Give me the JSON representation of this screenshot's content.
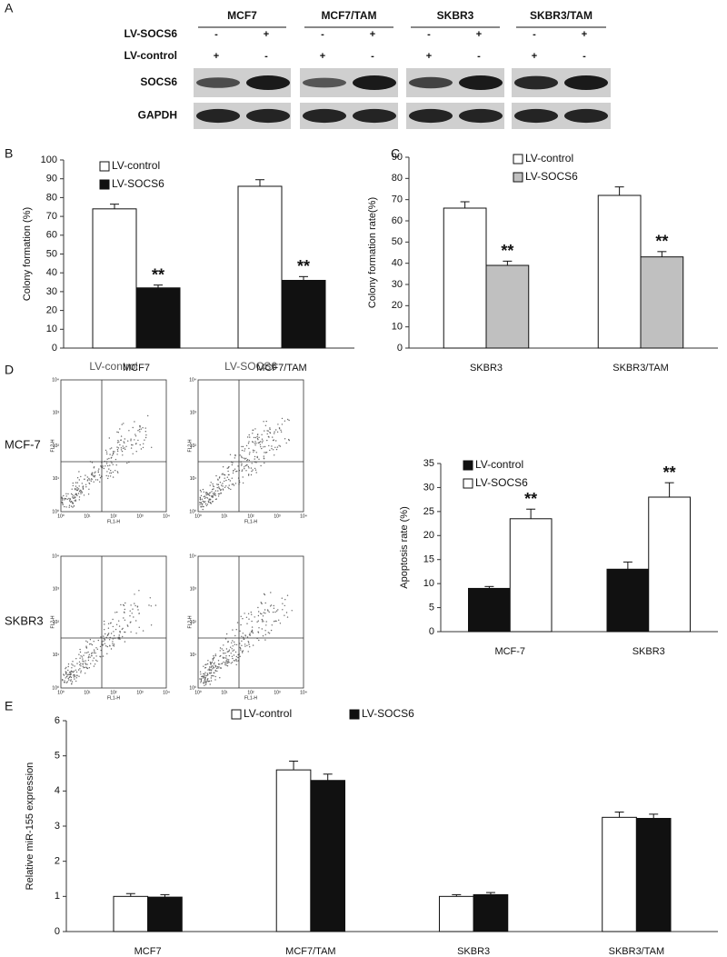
{
  "panel_labels": [
    "A",
    "B",
    "C",
    "D",
    "E"
  ],
  "blot": {
    "groups": [
      "MCF7",
      "MCF7/TAM",
      "SKBR3",
      "SKBR3/TAM"
    ],
    "rows": [
      {
        "label": "LV-SOCS6",
        "signs": [
          "-",
          "+",
          "-",
          "+",
          "-",
          "+",
          "-",
          "+"
        ]
      },
      {
        "label": "LV-control",
        "signs": [
          "+",
          "-",
          "+",
          "-",
          "+",
          "-",
          "+",
          "-"
        ]
      }
    ],
    "bands": [
      "SOCS6",
      "GAPDH"
    ]
  },
  "flow": {
    "columns": [
      "LV-control",
      "LV-SOCS6"
    ],
    "rows": [
      "MCF-7",
      "SKBR3"
    ],
    "x_label": "FL1-H",
    "y_label": "FL2-H",
    "ticks": [
      "10⁰",
      "10¹",
      "10²",
      "10³",
      "10⁴"
    ]
  },
  "chart_data": [
    {
      "type": "bar",
      "categories": [
        "MCF7",
        "MCF7/TAM"
      ],
      "y_label": "Colony formation (%)",
      "ylim": [
        0,
        100
      ],
      "yticks": [
        0,
        10,
        20,
        30,
        40,
        50,
        60,
        70,
        80,
        90,
        100
      ],
      "legend": "upper left",
      "series": [
        {
          "name": "LV-control",
          "color": "#ffffff",
          "values": [
            74,
            86
          ],
          "errors": [
            2.5,
            3.5
          ]
        },
        {
          "name": "LV-SOCS6",
          "color": "#111111",
          "values": [
            32,
            36
          ],
          "errors": [
            1.5,
            2
          ],
          "annotations": [
            "**",
            "**"
          ]
        }
      ]
    },
    {
      "type": "bar",
      "categories": [
        "SKBR3",
        "SKBR3/TAM"
      ],
      "y_label": "Colony formation rate(%)",
      "ylim": [
        0,
        90
      ],
      "yticks": [
        0,
        10,
        20,
        30,
        40,
        50,
        60,
        70,
        80,
        90
      ],
      "legend": "upper left",
      "series": [
        {
          "name": "LV-control",
          "color": "#ffffff",
          "values": [
            66,
            72
          ],
          "errors": [
            3,
            4
          ]
        },
        {
          "name": "LV-SOCS6",
          "color": "#c0c0c0",
          "values": [
            39,
            43
          ],
          "errors": [
            2,
            2.5
          ],
          "annotations": [
            "**",
            "**"
          ]
        }
      ]
    },
    {
      "type": "bar",
      "categories": [
        "MCF-7",
        "SKBR3"
      ],
      "y_label": "Apoptosis rate (%)",
      "ylim": [
        0,
        35
      ],
      "yticks": [
        0,
        5,
        10,
        15,
        20,
        25,
        30,
        35
      ],
      "legend": "upper left",
      "series": [
        {
          "name": "LV-control",
          "color": "#111111",
          "values": [
            9,
            13
          ],
          "errors": [
            0.4,
            1.5
          ]
        },
        {
          "name": "LV-SOCS6",
          "color": "#ffffff",
          "values": [
            23.5,
            28
          ],
          "errors": [
            2,
            3
          ],
          "annotations": [
            "**",
            "**"
          ]
        }
      ]
    },
    {
      "type": "bar",
      "categories": [
        "MCF7",
        "MCF7/TAM",
        "SKBR3",
        "SKBR3/TAM"
      ],
      "y_label": "Relative miR-155 expression",
      "ylim": [
        0,
        6
      ],
      "yticks": [
        0,
        1,
        2,
        3,
        4,
        5,
        6
      ],
      "legend": "upper center",
      "series": [
        {
          "name": "LV-control",
          "color": "#ffffff",
          "values": [
            1.0,
            4.6,
            1.0,
            3.25
          ],
          "errors": [
            0.08,
            0.25,
            0.05,
            0.15
          ]
        },
        {
          "name": "LV-SOCS6",
          "color": "#111111",
          "values": [
            0.98,
            4.3,
            1.05,
            3.22
          ],
          "errors": [
            0.07,
            0.18,
            0.06,
            0.12
          ]
        }
      ]
    }
  ]
}
